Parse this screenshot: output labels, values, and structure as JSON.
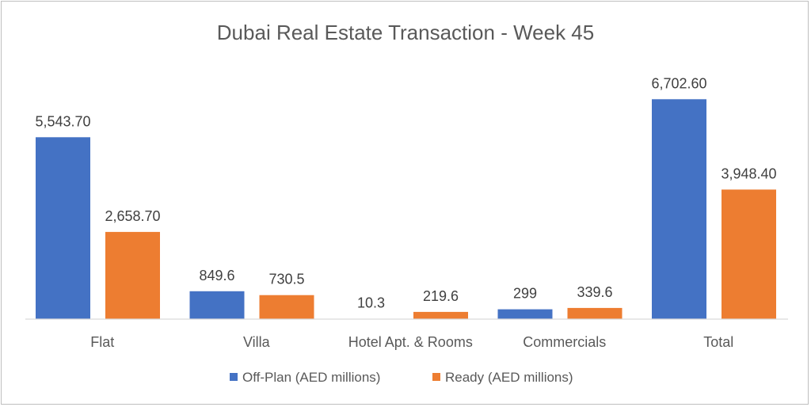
{
  "chart_data": {
    "type": "bar",
    "title": "Dubai Real Estate Transaction - Week 45",
    "categories": [
      "Flat",
      "Villa",
      "Hotel Apt. & Rooms",
      "Commercials",
      "Total"
    ],
    "series": [
      {
        "name": "Off-Plan (AED millions)",
        "color": "#4472C4",
        "values": [
          5543.7,
          849.6,
          10.3,
          299,
          6702.6
        ],
        "labels": [
          "5,543.70",
          "849.6",
          "10.3",
          "299",
          "6,702.60"
        ]
      },
      {
        "name": "Ready (AED millions)",
        "color": "#ED7D31",
        "values": [
          2658.7,
          730.5,
          219.6,
          339.6,
          3948.4
        ],
        "labels": [
          "2,658.70",
          "730.5",
          "219.6",
          "339.6",
          "3,948.40"
        ]
      }
    ],
    "ylim": [
      0,
      7000
    ],
    "grid": false,
    "legend_position": "bottom"
  }
}
